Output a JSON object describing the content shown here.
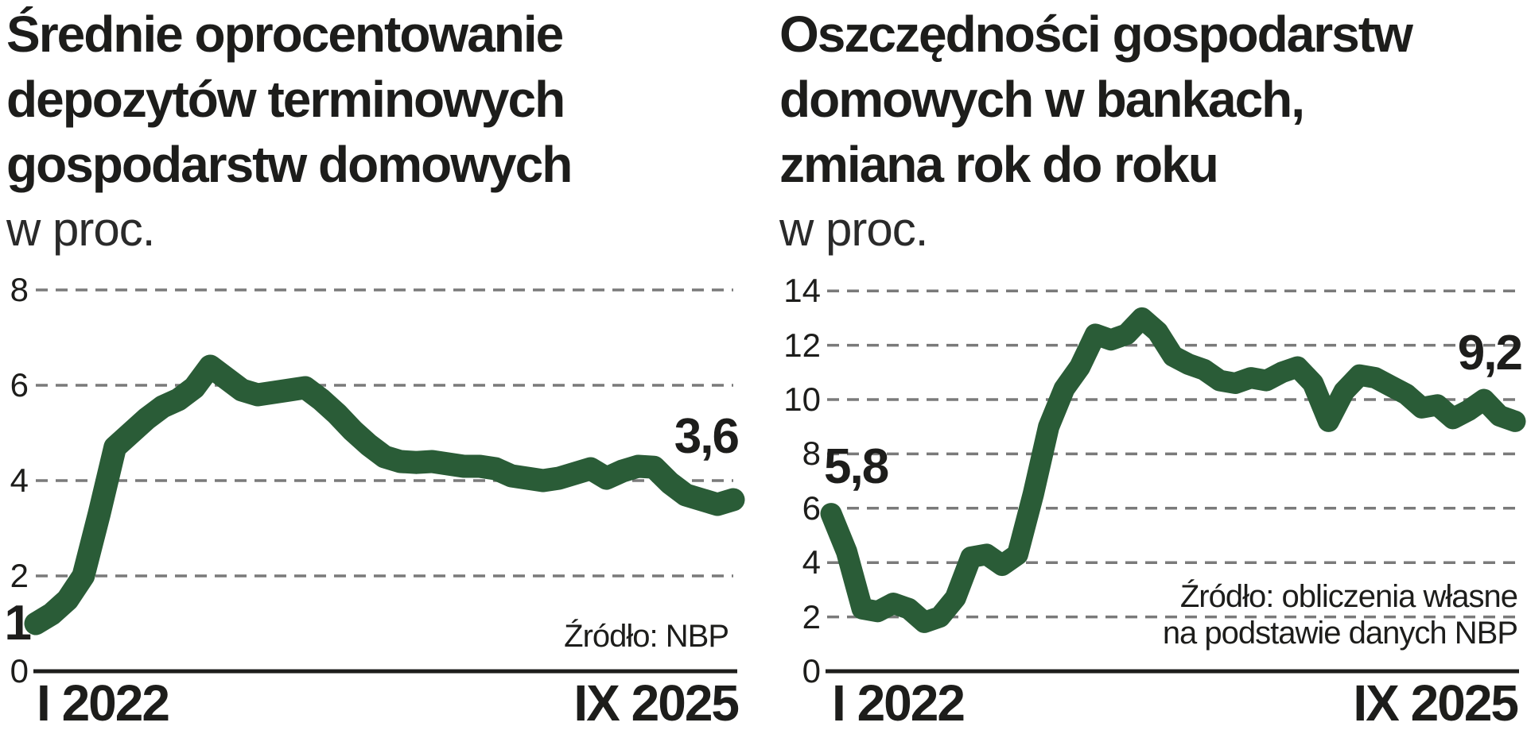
{
  "page_background": "#ffffff",
  "colors": {
    "line": "#2a5c37",
    "grid": "#7a7a7a",
    "axis": "#1d1d1b",
    "text": "#1d1d1b"
  },
  "chart_data": [
    {
      "type": "line",
      "title": "Średnie oprocentowanie\ndepozytów terminowych\ngospodarstw domowych",
      "unit": "w proc.",
      "source": "Źródło: NBP",
      "x_tick_labels": [
        "I 2022",
        "IX 2025"
      ],
      "x_range_months": 45,
      "ylim": [
        0,
        8
      ],
      "yticks": [
        0,
        2,
        4,
        6,
        8
      ],
      "grid": "dashed",
      "legend": "none",
      "line_color": "#2a5c37",
      "first_value_label": "1",
      "last_value_label": "3,6",
      "values": [
        1.0,
        1.2,
        1.5,
        2.0,
        3.3,
        4.7,
        5.0,
        5.3,
        5.55,
        5.7,
        5.95,
        6.4,
        6.15,
        5.9,
        5.8,
        5.85,
        5.9,
        5.95,
        5.7,
        5.4,
        5.05,
        4.75,
        4.5,
        4.4,
        4.38,
        4.4,
        4.35,
        4.3,
        4.3,
        4.25,
        4.1,
        4.05,
        4.0,
        4.05,
        4.15,
        4.25,
        4.05,
        4.2,
        4.3,
        4.28,
        3.95,
        3.7,
        3.6,
        3.5,
        3.6
      ]
    },
    {
      "type": "line",
      "title": "Oszczędności gospodarstw\ndomowych w bankach,\nzmiana rok do roku",
      "unit": "w proc.",
      "source": "Źródło: obliczenia własne\nna podstawie danych NBP",
      "x_tick_labels": [
        "I 2022",
        "IX 2025"
      ],
      "x_range_months": 45,
      "ylim": [
        0,
        14
      ],
      "yticks": [
        0,
        2,
        4,
        6,
        8,
        10,
        12,
        14
      ],
      "grid": "dashed",
      "legend": "none",
      "line_color": "#2a5c37",
      "first_value_label": "5,8",
      "last_value_label": "9,2",
      "values": [
        5.8,
        4.4,
        2.3,
        2.2,
        2.5,
        2.3,
        1.8,
        2.0,
        2.7,
        4.2,
        4.3,
        3.9,
        4.3,
        6.5,
        9.0,
        10.4,
        11.2,
        12.4,
        12.2,
        12.4,
        13.0,
        12.5,
        11.6,
        11.3,
        11.1,
        10.7,
        10.6,
        10.8,
        10.7,
        11.0,
        11.2,
        10.6,
        9.2,
        10.3,
        10.9,
        10.8,
        10.5,
        10.2,
        9.7,
        9.8,
        9.3,
        9.6,
        10.0,
        9.4,
        9.2
      ]
    }
  ]
}
